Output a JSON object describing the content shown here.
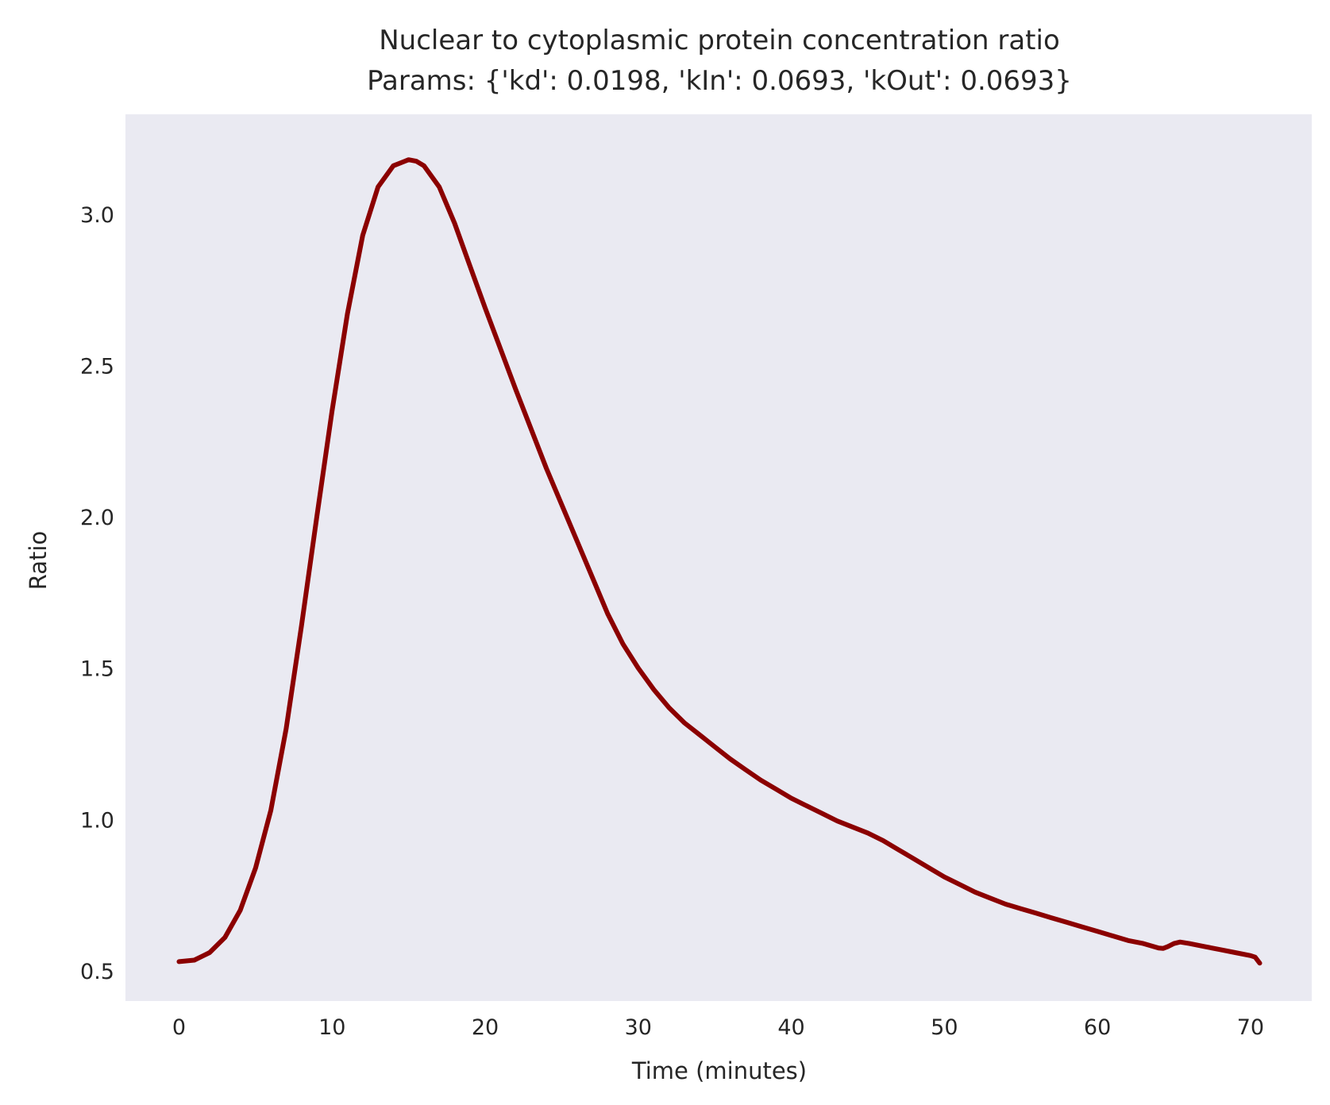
{
  "chart_data": {
    "type": "line",
    "title": "Nuclear to cytoplasmic protein concentration ratio",
    "subtitle": "Params: {'kd': 0.0198, 'kIn': 0.0693, 'kOut': 0.0693}",
    "xlabel": "Time (minutes)",
    "ylabel": "Ratio",
    "xlim": [
      -3.5,
      74
    ],
    "ylim": [
      0.4,
      3.33
    ],
    "xticks": [
      0,
      10,
      20,
      30,
      40,
      50,
      60,
      70
    ],
    "xtick_labels": [
      "0",
      "10",
      "20",
      "30",
      "40",
      "50",
      "60",
      "70"
    ],
    "yticks": [
      0.5,
      1.0,
      1.5,
      2.0,
      2.5,
      3.0
    ],
    "ytick_labels": [
      "0.5",
      "1.0",
      "1.5",
      "2.0",
      "2.5",
      "3.0"
    ],
    "grid": false,
    "background_color": "#eaeaf2",
    "series": [
      {
        "color": "#8b0000",
        "x": [
          0,
          1,
          2,
          3,
          4,
          5,
          6,
          7,
          8,
          9,
          10,
          11,
          12,
          13,
          14,
          15,
          15.5,
          16,
          17,
          18,
          19,
          20,
          22,
          24,
          26,
          27,
          28,
          29,
          30,
          31,
          32,
          33,
          34,
          35,
          36,
          37,
          38,
          39,
          40,
          41,
          42,
          43,
          44,
          45,
          46,
          47,
          48,
          49,
          50,
          51,
          52,
          53,
          54,
          55,
          56,
          57,
          58,
          59,
          60,
          61,
          62,
          63,
          64,
          64.3,
          64.6,
          65,
          65.4,
          66,
          67,
          68,
          69,
          70,
          70.3,
          70.6
        ],
        "y": [
          0.53,
          0.535,
          0.56,
          0.61,
          0.7,
          0.84,
          1.03,
          1.3,
          1.64,
          2.0,
          2.35,
          2.67,
          2.93,
          3.09,
          3.16,
          3.18,
          3.175,
          3.16,
          3.09,
          2.97,
          2.83,
          2.69,
          2.42,
          2.16,
          1.92,
          1.8,
          1.68,
          1.58,
          1.5,
          1.43,
          1.37,
          1.32,
          1.28,
          1.24,
          1.2,
          1.165,
          1.13,
          1.1,
          1.07,
          1.045,
          1.02,
          0.995,
          0.975,
          0.955,
          0.93,
          0.9,
          0.87,
          0.84,
          0.81,
          0.785,
          0.76,
          0.74,
          0.72,
          0.705,
          0.69,
          0.675,
          0.66,
          0.645,
          0.63,
          0.615,
          0.6,
          0.59,
          0.575,
          0.574,
          0.58,
          0.59,
          0.595,
          0.59,
          0.58,
          0.57,
          0.56,
          0.55,
          0.545,
          0.525
        ]
      }
    ]
  }
}
